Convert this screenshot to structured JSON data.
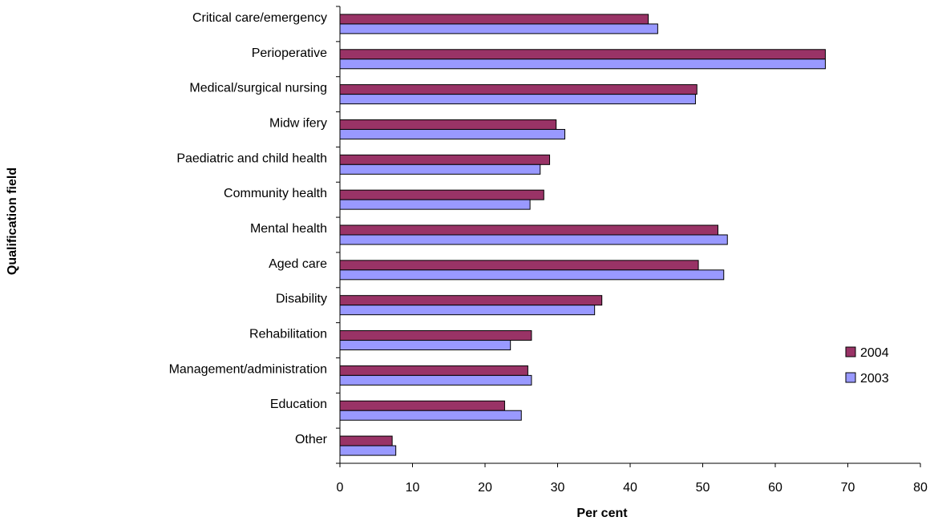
{
  "chart_data": {
    "type": "bar",
    "orientation": "horizontal",
    "categories": [
      "Critical care/emergency",
      "Perioperative",
      "Medical/surgical nursing",
      "Midw ifery",
      "Paediatric and child health",
      "Community health",
      "Mental health",
      "Aged care",
      "Disability",
      "Rehabilitation",
      "Management/administration",
      "Education",
      "Other"
    ],
    "series": [
      {
        "name": "2004",
        "color": "#993366",
        "values": [
          42.5,
          66.9,
          49.2,
          29.8,
          28.9,
          28.1,
          52.1,
          49.4,
          36.1,
          26.4,
          25.9,
          22.7,
          7.2
        ]
      },
      {
        "name": "2003",
        "color": "#9999ff",
        "values": [
          43.8,
          66.9,
          49.0,
          31.0,
          27.6,
          26.2,
          53.4,
          52.9,
          35.1,
          23.5,
          26.4,
          25.0,
          7.7
        ]
      }
    ],
    "xlim": [
      0,
      80
    ],
    "xticks": [
      "0",
      "10",
      "20",
      "30",
      "40",
      "50",
      "60",
      "70",
      "80"
    ],
    "xlabel": "Per cent",
    "ylabel": "Qualification field",
    "grid": false,
    "legend_position": "right"
  }
}
